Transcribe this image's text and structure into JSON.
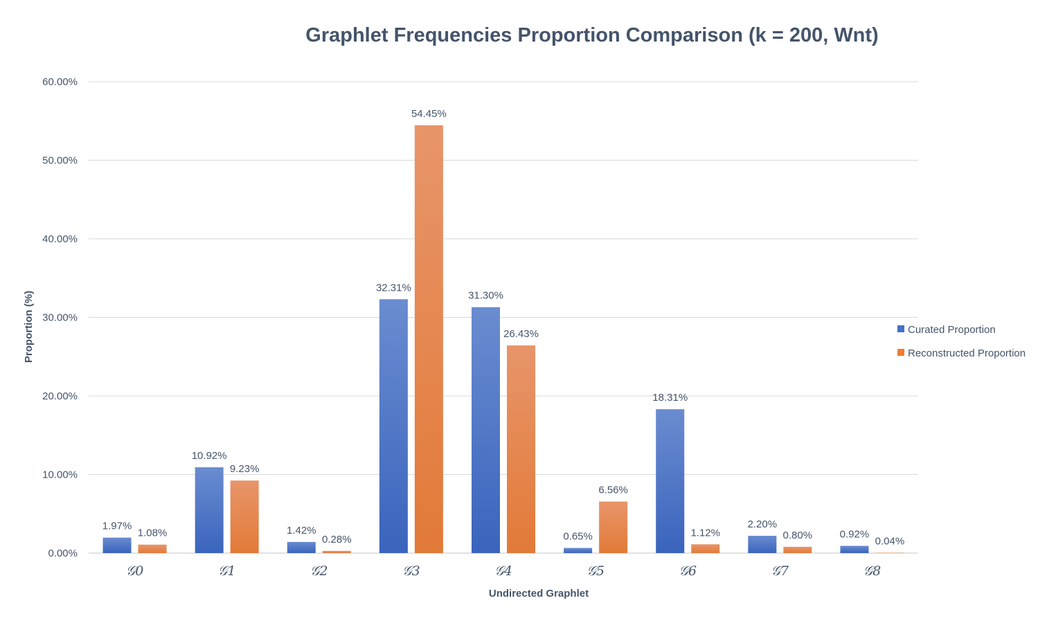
{
  "chart_data": {
    "type": "bar",
    "title": "Graphlet Frequencies Proportion Comparison (k = 200, Wnt)",
    "xlabel": "Undirected Graphlet",
    "ylabel": "Proportion (%)",
    "ylim": [
      0,
      60
    ],
    "yticks": [
      "0.00%",
      "10.00%",
      "20.00%",
      "30.00%",
      "40.00%",
      "50.00%",
      "60.00%"
    ],
    "grid": true,
    "legend_position": "right",
    "categories": [
      "𝒢0",
      "𝒢1",
      "𝒢2",
      "𝒢3",
      "𝒢4",
      "𝒢5",
      "𝒢6",
      "𝒢7",
      "𝒢8"
    ],
    "series": [
      {
        "name": "Curated Proportion",
        "color": "#4472c4",
        "values": [
          1.97,
          10.92,
          1.42,
          32.31,
          31.3,
          0.65,
          18.31,
          2.2,
          0.92
        ],
        "labels": [
          "1.97%",
          "10.92%",
          "1.42%",
          "32.31%",
          "31.30%",
          "0.65%",
          "18.31%",
          "2.20%",
          "0.92%"
        ]
      },
      {
        "name": "Reconstructed Proportion",
        "color": "#ed7d31",
        "values": [
          1.08,
          9.23,
          0.28,
          54.45,
          26.43,
          6.56,
          1.12,
          0.8,
          0.04
        ],
        "labels": [
          "1.08%",
          "9.23%",
          "0.28%",
          "54.45%",
          "26.43%",
          "6.56%",
          "1.12%",
          "0.80%",
          "0.04%"
        ]
      }
    ]
  }
}
